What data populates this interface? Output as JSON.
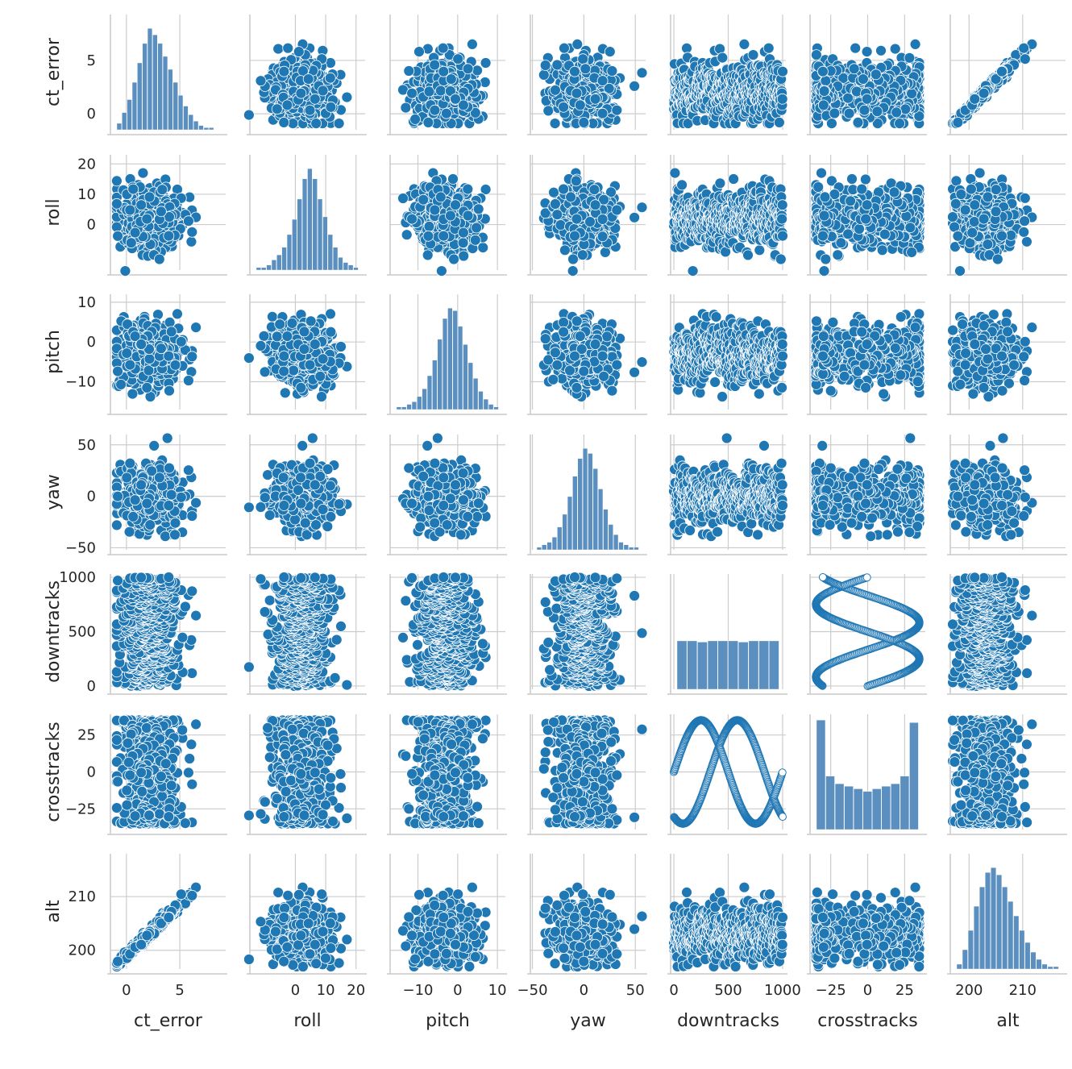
{
  "chart_data": {
    "type": "scatter",
    "variant": "pairplot",
    "grid": true,
    "colors": {
      "marker": "#1f77b4",
      "marker_edge": "#ffffff",
      "hist": "#5b8fbf",
      "grid": "#cccccc",
      "spine": "#c8c8c8"
    },
    "variables": [
      {
        "name": "ct_error",
        "label": "ct_error",
        "lim": [
          -1.5,
          9.3
        ],
        "ticks": [
          0,
          5
        ],
        "tick_labels": [
          "0",
          "5"
        ],
        "mean": 2.0,
        "sd": 1.4
      },
      {
        "name": "roll",
        "label": "roll",
        "lim": [
          -15,
          23
        ],
        "ticks": [
          0,
          10,
          20
        ],
        "tick_labels": [
          "0",
          "10",
          "20"
        ],
        "mean": 2.0,
        "sd": 5.0
      },
      {
        "name": "pitch",
        "label": "pitch",
        "lim": [
          -17,
          12
        ],
        "ticks": [
          -10,
          0,
          10
        ],
        "tick_labels": [
          "−10",
          "0",
          "10"
        ],
        "mean": -3.0,
        "sd": 4.0
      },
      {
        "name": "yaw",
        "label": "yaw",
        "lim": [
          -52,
          60
        ],
        "ticks": [
          -50,
          0,
          50
        ],
        "tick_labels": [
          "−50",
          "0",
          "50"
        ],
        "mean": 0.0,
        "sd": 15.0
      },
      {
        "name": "downtracks",
        "label": "downtracks",
        "lim": [
          -30,
          1030
        ],
        "ticks": [
          0,
          500,
          1000
        ],
        "tick_labels": [
          "0",
          "500",
          "1000"
        ],
        "mean": 500,
        "sd": 290
      },
      {
        "name": "crosstracks",
        "label": "crosstracks",
        "lim": [
          -39,
          39
        ],
        "ticks": [
          -25,
          0,
          25
        ],
        "tick_labels": [
          "−25",
          "0",
          "25"
        ],
        "mean": 0,
        "sd": 25
      },
      {
        "name": "alt",
        "label": "alt",
        "lim": [
          196.5,
          218
        ],
        "ticks": [
          200,
          210
        ],
        "tick_labels": [
          "200",
          "210"
        ],
        "mean": 203.5,
        "sd": 3.0
      }
    ],
    "histograms": {
      "ct_error": [
        3,
        8,
        14,
        22,
        31,
        40,
        47,
        44,
        40,
        34,
        28,
        22,
        16,
        11,
        7,
        4,
        2,
        1,
        1,
        0
      ],
      "roll": [
        1,
        1,
        2,
        4,
        6,
        9,
        14,
        20,
        28,
        36,
        40,
        36,
        28,
        21,
        14,
        9,
        5,
        3,
        2,
        1
      ],
      "pitch": [
        1,
        1,
        2,
        3,
        5,
        8,
        13,
        19,
        27,
        35,
        39,
        38,
        32,
        25,
        18,
        12,
        7,
        4,
        2,
        1
      ],
      "yaw": [
        1,
        2,
        3,
        5,
        9,
        14,
        21,
        29,
        36,
        40,
        38,
        32,
        24,
        16,
        10,
        6,
        3,
        2,
        1,
        1
      ],
      "downtracks": [
        40,
        40,
        39,
        40,
        40,
        40,
        39,
        40,
        40,
        40
      ],
      "crosstracks": [
        43,
        21,
        18,
        17,
        16,
        15,
        16,
        17,
        18,
        21,
        42
      ],
      "alt": [
        2,
        8,
        16,
        26,
        34,
        40,
        42,
        39,
        34,
        28,
        22,
        16,
        11,
        7,
        4,
        2,
        1,
        1
      ]
    },
    "n_points": 500,
    "trajectory": {
      "downtracks_range": [
        0,
        1000
      ],
      "crosstracks_amplitude": 35,
      "cycles": 2
    }
  }
}
